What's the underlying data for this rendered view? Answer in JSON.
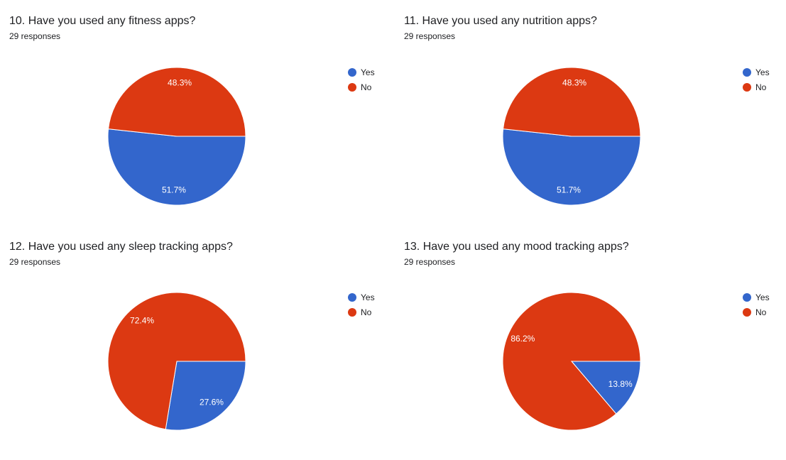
{
  "colors": {
    "yes": "#3366cc",
    "no": "#dc3912"
  },
  "legend": {
    "yes_label": "Yes",
    "no_label": "No"
  },
  "charts": [
    {
      "title": "10. Have you used any fitness apps?",
      "subtitle": "29 responses"
    },
    {
      "title": "11. Have you used any nutrition apps?",
      "subtitle": "29 responses"
    },
    {
      "title": "12. Have you used any sleep tracking apps?",
      "subtitle": "29 responses"
    },
    {
      "title": "13. Have you used any mood tracking apps?",
      "subtitle": "29 responses"
    }
  ],
  "chart_data": [
    {
      "type": "pie",
      "title": "10. Have you used any fitness apps?",
      "subtitle": "29 responses",
      "categories": [
        "Yes",
        "No"
      ],
      "values": [
        51.7,
        48.3
      ],
      "labels": [
        "51.7%",
        "48.3%"
      ],
      "legend_position": "right"
    },
    {
      "type": "pie",
      "title": "11. Have you used any nutrition apps?",
      "subtitle": "29 responses",
      "categories": [
        "Yes",
        "No"
      ],
      "values": [
        51.7,
        48.3
      ],
      "labels": [
        "51.7%",
        "48.3%"
      ],
      "legend_position": "right"
    },
    {
      "type": "pie",
      "title": "12. Have you used any sleep tracking apps?",
      "subtitle": "29 responses",
      "categories": [
        "Yes",
        "No"
      ],
      "values": [
        27.6,
        72.4
      ],
      "labels": [
        "27.6%",
        "72.4%"
      ],
      "legend_position": "right"
    },
    {
      "type": "pie",
      "title": "13. Have you used any mood tracking apps?",
      "subtitle": "29 responses",
      "categories": [
        "Yes",
        "No"
      ],
      "values": [
        13.8,
        86.2
      ],
      "labels": [
        "13.8%",
        "86.2%"
      ],
      "legend_position": "right"
    }
  ]
}
